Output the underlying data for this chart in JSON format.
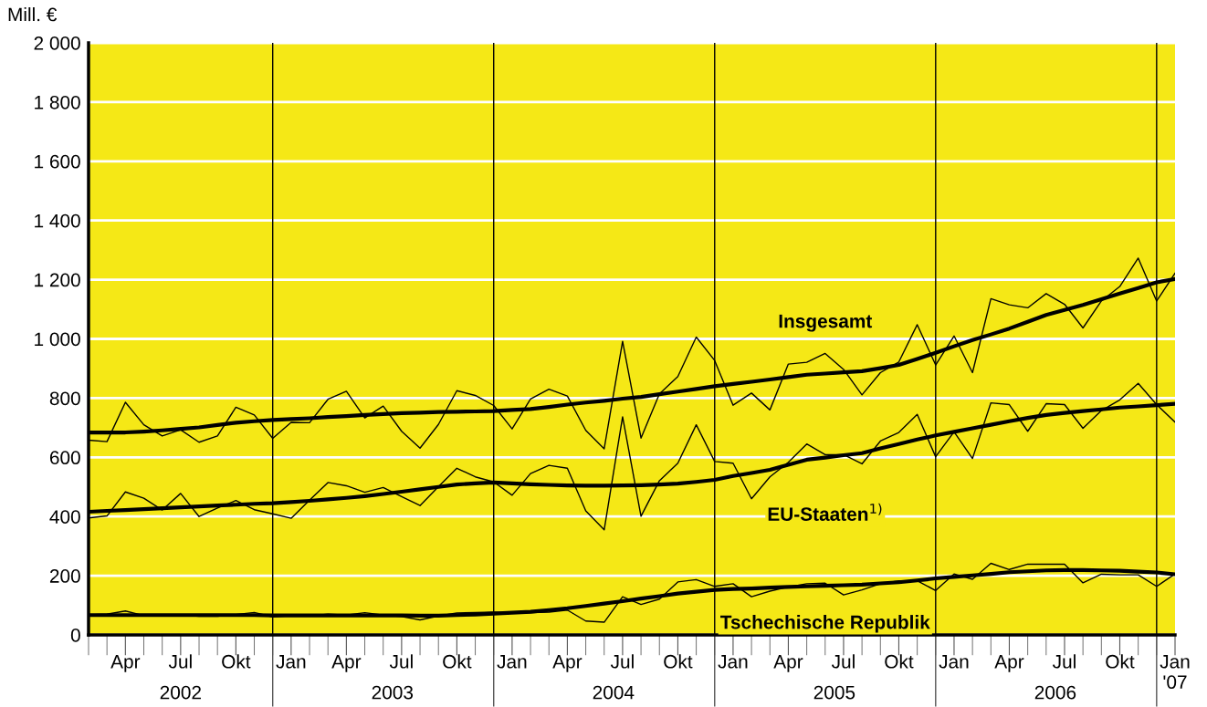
{
  "chart_data": {
    "type": "line",
    "ylabel": "Mill. €",
    "x": [
      "2002-02",
      "2002-03",
      "2002-04",
      "2002-05",
      "2002-06",
      "2002-07",
      "2002-08",
      "2002-09",
      "2002-10",
      "2002-11",
      "2002-12",
      "2003-01",
      "2003-02",
      "2003-03",
      "2003-04",
      "2003-05",
      "2003-06",
      "2003-07",
      "2003-08",
      "2003-09",
      "2003-10",
      "2003-11",
      "2003-12",
      "2004-01",
      "2004-02",
      "2004-03",
      "2004-04",
      "2004-05",
      "2004-06",
      "2004-07",
      "2004-08",
      "2004-09",
      "2004-10",
      "2004-11",
      "2004-12",
      "2005-01",
      "2005-02",
      "2005-03",
      "2005-04",
      "2005-05",
      "2005-06",
      "2005-07",
      "2005-08",
      "2005-09",
      "2005-10",
      "2005-11",
      "2005-12",
      "2006-01",
      "2006-02",
      "2006-03",
      "2006-04",
      "2006-05",
      "2006-06",
      "2006-07",
      "2006-08",
      "2006-09",
      "2006-10",
      "2006-11",
      "2006-12",
      "2007-01"
    ],
    "series": [
      {
        "color": "#000000",
        "values": [
          658,
          653,
          786,
          710,
          672,
          693,
          651,
          672,
          769,
          743,
          664,
          718,
          717,
          796,
          823,
          733,
          773,
          688,
          631,
          711,
          825,
          809,
          775,
          696,
          797,
          830,
          807,
          691,
          629,
          992,
          665,
          814,
          873,
          1006,
          927,
          776,
          817,
          760,
          915,
          921,
          951,
          897,
          811,
          886,
          922,
          1048,
          912,
          1010,
          886,
          1136,
          1115,
          1105,
          1153,
          1117,
          1037,
          1128,
          1177,
          1273,
          1128,
          1222
        ]
      },
      {
        "color": "#000000",
        "values": [
          395,
          402,
          483,
          462,
          422,
          478,
          400,
          429,
          454,
          423,
          409,
          394,
          455,
          515,
          504,
          482,
          498,
          467,
          437,
          501,
          563,
          534,
          517,
          472,
          545,
          573,
          563,
          419,
          355,
          737,
          401,
          521,
          580,
          710,
          586,
          580,
          460,
          534,
          583,
          645,
          609,
          609,
          578,
          655,
          684,
          745,
          602,
          686,
          596,
          784,
          778,
          688,
          781,
          778,
          698,
          758,
          794,
          850,
          778,
          719
        ]
      },
      {
        "color": "#000000",
        "values": [
          68,
          70,
          81,
          65,
          68,
          68,
          63,
          63,
          69,
          76,
          61,
          65,
          64,
          70,
          67,
          75,
          67,
          62,
          51,
          64,
          74,
          76,
          77,
          74,
          75,
          77,
          84,
          47,
          43,
          129,
          103,
          121,
          179,
          187,
          164,
          173,
          129,
          148,
          162,
          173,
          175,
          135,
          152,
          173,
          183,
          183,
          150,
          206,
          188,
          242,
          221,
          239,
          239,
          239,
          176,
          205,
          203,
          203,
          164,
          206
        ]
      },
      {
        "name": "Insgesamt",
        "color": "#000000",
        "values": [
          684,
          684,
          684,
          687,
          691,
          696,
          701,
          709,
          717,
          722,
          726,
          729,
          732,
          736,
          739,
          743,
          746,
          749,
          751,
          753,
          754,
          755,
          756,
          760,
          763,
          770,
          778,
          785,
          791,
          798,
          804,
          813,
          822,
          831,
          840,
          848,
          855,
          863,
          871,
          879,
          883,
          887,
          891,
          901,
          912,
          932,
          953,
          975,
          996,
          1015,
          1035,
          1058,
          1081,
          1098,
          1115,
          1134,
          1153,
          1172,
          1191,
          1202
        ]
      },
      {
        "name": "EU-Staaten$^{1)}$",
        "color": "#000000",
        "values": [
          416,
          419,
          422,
          425,
          428,
          431,
          434,
          437,
          440,
          443,
          445,
          449,
          453,
          458,
          463,
          469,
          476,
          484,
          492,
          500,
          508,
          512,
          515,
          512,
          509,
          507,
          505,
          504,
          504,
          505,
          506,
          508,
          511,
          517,
          524,
          537,
          547,
          558,
          575,
          592,
          599,
          607,
          614,
          630,
          645,
          660,
          674,
          686,
          698,
          710,
          722,
          733,
          743,
          750,
          756,
          762,
          768,
          772,
          776,
          781
        ]
      },
      {
        "name": "Tschechische Republik",
        "color": "#000000",
        "values": [
          67,
          67,
          67,
          67,
          67,
          67,
          67,
          67,
          67,
          67,
          66,
          66,
          66,
          66,
          66,
          66,
          66,
          66,
          65,
          65,
          67,
          69,
          72,
          75,
          78,
          84,
          90,
          98,
          106,
          114,
          123,
          131,
          140,
          146,
          152,
          155,
          157,
          160,
          162,
          164,
          166,
          168,
          170,
          174,
          178,
          184,
          191,
          196,
          201,
          206,
          212,
          215,
          218,
          219,
          219,
          218,
          217,
          214,
          211,
          205
        ]
      }
    ],
    "xlim": [
      "2002-02",
      "2007-01"
    ],
    "xticks": [
      {
        "value": "2002-04",
        "label": "Apr"
      },
      {
        "value": "2002-07",
        "label": "Jul"
      },
      {
        "value": "2002-10",
        "label": "Okt"
      },
      {
        "value": "2003-01",
        "label": "Jan"
      },
      {
        "value": "2003-04",
        "label": "Apr"
      },
      {
        "value": "2003-07",
        "label": "Jul"
      },
      {
        "value": "2003-10",
        "label": "Okt"
      },
      {
        "value": "2004-01",
        "label": "Jan"
      },
      {
        "value": "2004-04",
        "label": "Apr"
      },
      {
        "value": "2004-07",
        "label": "Jul"
      },
      {
        "value": "2004-10",
        "label": "Okt"
      },
      {
        "value": "2005-01",
        "label": "Jan"
      },
      {
        "value": "2005-04",
        "label": "Apr"
      },
      {
        "value": "2005-07",
        "label": "Jul"
      },
      {
        "value": "2005-10",
        "label": "Okt"
      },
      {
        "value": "2006-01",
        "label": "Jan"
      },
      {
        "value": "2006-04",
        "label": "Apr"
      },
      {
        "value": "2006-07",
        "label": "Jul"
      },
      {
        "value": "2006-10",
        "label": "Okt"
      },
      {
        "value": "2007-01",
        "label": "Jan\n'07"
      }
    ],
    "ylim": [
      0,
      2000
    ],
    "yticks": [
      0,
      {
        "value": 200,
        "label": "200"
      },
      400,
      600,
      800,
      {
        "value": 1000,
        "label": "1 000"
      },
      {
        "value": 1200,
        "label": "1 200"
      },
      {
        "value": 1400,
        "label": "1 400"
      },
      {
        "value": 1600,
        "label": "1 600"
      },
      {
        "value": 1800,
        "label": "1 800"
      },
      {
        "value": 2000,
        "label": "2 000"
      }
    ],
    "ref_lines": [
      {
        "axis": "x",
        "value": "2002-12",
        "color": "#000000"
      },
      {
        "axis": "x",
        "value": "2003-12",
        "color": "#000000"
      },
      {
        "axis": "x",
        "value": "2004-12",
        "color": "#000000"
      },
      {
        "axis": "x",
        "value": "2005-12",
        "color": "#000000"
      },
      {
        "axis": "x",
        "value": "2006-12",
        "color": "#000000"
      }
    ],
    "annotations": [
      "2002",
      "2003",
      "2004",
      "2005",
      "2006"
    ],
    "grid": "y",
    "legend": false
  }
}
